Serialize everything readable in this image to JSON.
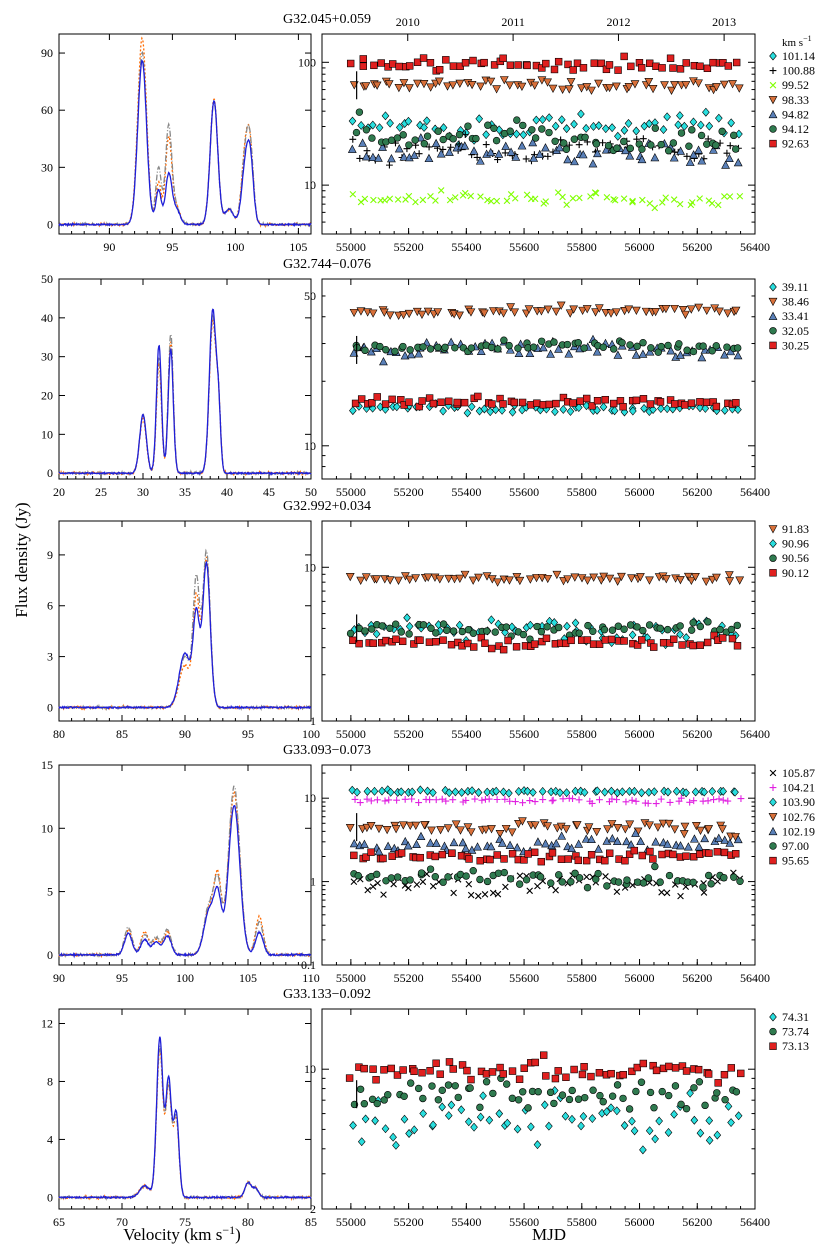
{
  "figure": {
    "ylabel": "Flux density (Jy)",
    "xlabel_left": "Velocity (km s",
    "xlabel_left_sup": "−1",
    "xlabel_left_end": ")",
    "xlabel_right": "MJD",
    "legend_unit": "km s",
    "legend_unit_sup": "−1",
    "top_years": [
      {
        "label": "2010",
        "mjd": 55197
      },
      {
        "label": "2011",
        "mjd": 55562
      },
      {
        "label": "2012",
        "mjd": 55927
      },
      {
        "label": "2013",
        "mjd": 56293
      }
    ],
    "spectrum_line_colors": {
      "main": "#1f1fd8",
      "dashdot": "#888888",
      "dotted": "#ff6a00"
    }
  },
  "chart_data": [
    {
      "type": "line",
      "title": "G32.045+0.059",
      "spectrum": {
        "xlim": [
          86,
          106
        ],
        "ylim": [
          -5,
          100
        ],
        "xticks": [
          90,
          95,
          100,
          105
        ],
        "yticks": [
          0,
          30,
          60,
          90
        ],
        "peaks": [
          {
            "v": 92.6,
            "main": 86,
            "dash": 90,
            "dot": 98,
            "w": 0.35
          },
          {
            "v": 93.9,
            "main": 18,
            "dash": 30,
            "dot": 22,
            "w": 0.22
          },
          {
            "v": 94.7,
            "main": 26,
            "dash": 51,
            "dot": 45,
            "w": 0.25
          },
          {
            "v": 95.3,
            "main": 8,
            "dash": 9,
            "dot": 9,
            "w": 0.3
          },
          {
            "v": 98.3,
            "main": 65,
            "dash": 64,
            "dot": 66,
            "w": 0.3
          },
          {
            "v": 99.5,
            "main": 8,
            "dash": 8,
            "dot": 8,
            "w": 0.35
          },
          {
            "v": 100.8,
            "main": 30,
            "dash": 36,
            "dot": 38,
            "w": 0.3
          },
          {
            "v": 101.2,
            "main": 28,
            "dash": 32,
            "dot": 30,
            "w": 0.25
          }
        ]
      },
      "lightcurve": {
        "xlim": [
          54900,
          56400
        ],
        "ylog": true,
        "ylim": [
          4,
          170
        ],
        "xticks": [
          55000,
          55200,
          55400,
          55600,
          55800,
          56000,
          56200,
          56400
        ],
        "yticks": [
          10,
          100
        ],
        "legend_with_unit": true,
        "series": [
          {
            "name": "101.14",
            "marker": "diamond",
            "color": "#29dede",
            "base": 30,
            "var": 0.25
          },
          {
            "name": "100.88",
            "marker": "plus",
            "color": "#000000",
            "base": 20,
            "var": 0.3
          },
          {
            "name": "99.52",
            "marker": "x",
            "color": "#80ff00",
            "base": 7.5,
            "var": 0.15
          },
          {
            "name": "98.33",
            "marker": "tri-down",
            "color": "#d8703a",
            "base": 65,
            "var": 0.12
          },
          {
            "name": "94.82",
            "marker": "tri-up",
            "color": "#5a80b8",
            "base": 18,
            "var": 0.3
          },
          {
            "name": "94.12",
            "marker": "circle",
            "color": "#2f7a4f",
            "base": 25,
            "var": 0.35
          },
          {
            "name": "92.63",
            "marker": "square",
            "color": "#e0201f",
            "base": 95,
            "var": 0.15
          }
        ]
      }
    },
    {
      "type": "line",
      "title": "G32.744−0.076",
      "spectrum": {
        "xlim": [
          20,
          50
        ],
        "ylim": [
          -1.5,
          50
        ],
        "xticks": [
          20,
          25,
          30,
          35,
          40,
          45,
          50
        ],
        "yticks": [
          0,
          10,
          20,
          30,
          40,
          50
        ],
        "peaks": [
          {
            "v": 30.0,
            "main": 15,
            "dash": 15,
            "dot": 14,
            "w": 0.4
          },
          {
            "v": 31.9,
            "main": 33,
            "dash": 30,
            "dot": 28,
            "w": 0.3
          },
          {
            "v": 33.3,
            "main": 32,
            "dash": 36,
            "dot": 34,
            "w": 0.3
          },
          {
            "v": 38.3,
            "main": 42,
            "dash": 40,
            "dot": 39,
            "w": 0.4
          },
          {
            "v": 39.0,
            "main": 14,
            "dash": 15,
            "dot": 15,
            "w": 0.25
          }
        ]
      },
      "lightcurve": {
        "xlim": [
          54900,
          56400
        ],
        "ylog": true,
        "ylim": [
          7,
          60
        ],
        "xticks": [
          55000,
          55200,
          55400,
          55600,
          55800,
          56000,
          56200,
          56400
        ],
        "yticks": [
          10,
          50
        ],
        "legend_with_unit": false,
        "series": [
          {
            "name": "39.11",
            "marker": "diamond",
            "color": "#29dede",
            "base": 15,
            "var": 0.05
          },
          {
            "name": "38.46",
            "marker": "tri-down",
            "color": "#d8703a",
            "base": 42,
            "var": 0.06
          },
          {
            "name": "33.41",
            "marker": "tri-up",
            "color": "#5a80b8",
            "base": 28,
            "var": 0.1
          },
          {
            "name": "32.05",
            "marker": "circle",
            "color": "#2f7a4f",
            "base": 29,
            "var": 0.06
          },
          {
            "name": "30.25",
            "marker": "square",
            "color": "#e0201f",
            "base": 16,
            "var": 0.06
          }
        ]
      }
    },
    {
      "type": "line",
      "title": "G32.992+0.034",
      "spectrum": {
        "xlim": [
          80,
          100
        ],
        "ylim": [
          -0.8,
          11
        ],
        "xticks": [
          80,
          85,
          90,
          95,
          100
        ],
        "yticks": [
          0,
          3,
          6,
          9
        ],
        "peaks": [
          {
            "v": 90.0,
            "main": 3.2,
            "dash": 3.0,
            "dot": 2.5,
            "w": 0.45
          },
          {
            "v": 90.9,
            "main": 5.2,
            "dash": 7.2,
            "dot": 6.2,
            "w": 0.25
          },
          {
            "v": 91.7,
            "main": 8.5,
            "dash": 9.2,
            "dot": 8.8,
            "w": 0.3
          }
        ]
      },
      "lightcurve": {
        "xlim": [
          54900,
          56400
        ],
        "ylog": true,
        "ylim": [
          1,
          20
        ],
        "xticks": [
          55000,
          55200,
          55400,
          55600,
          55800,
          56000,
          56200,
          56400
        ],
        "yticks": [
          1,
          10
        ],
        "legend_with_unit": false,
        "series": [
          {
            "name": "91.83",
            "marker": "tri-down",
            "color": "#d8703a",
            "base": 8.5,
            "var": 0.08
          },
          {
            "name": "90.96",
            "marker": "diamond",
            "color": "#29dede",
            "base": 4.0,
            "var": 0.2
          },
          {
            "name": "90.56",
            "marker": "circle",
            "color": "#2f7a4f",
            "base": 4.0,
            "var": 0.12
          },
          {
            "name": "90.12",
            "marker": "square",
            "color": "#e0201f",
            "base": 3.2,
            "var": 0.12
          }
        ]
      }
    },
    {
      "type": "line",
      "title": "G33.093−0.073",
      "spectrum": {
        "xlim": [
          90,
          110
        ],
        "ylim": [
          -0.8,
          15
        ],
        "xticks": [
          90,
          95,
          100,
          105,
          110
        ],
        "yticks": [
          0,
          5,
          10,
          15
        ],
        "peaks": [
          {
            "v": 95.5,
            "main": 1.7,
            "dash": 2.2,
            "dot": 2.0,
            "w": 0.3
          },
          {
            "v": 96.8,
            "main": 1.2,
            "dash": 1.6,
            "dot": 1.8,
            "w": 0.3
          },
          {
            "v": 97.7,
            "main": 1.0,
            "dash": 1.4,
            "dot": 1.2,
            "w": 0.3
          },
          {
            "v": 98.6,
            "main": 1.5,
            "dash": 2.0,
            "dot": 1.8,
            "w": 0.3
          },
          {
            "v": 101.9,
            "main": 3.4,
            "dash": 3.8,
            "dot": 3.5,
            "w": 0.4
          },
          {
            "v": 102.6,
            "main": 4.4,
            "dash": 5.3,
            "dot": 5.7,
            "w": 0.3
          },
          {
            "v": 103.9,
            "main": 11.8,
            "dash": 13.3,
            "dot": 12.8,
            "w": 0.45
          },
          {
            "v": 105.9,
            "main": 1.8,
            "dash": 2.6,
            "dot": 3.0,
            "w": 0.3
          }
        ]
      },
      "lightcurve": {
        "xlim": [
          54900,
          56400
        ],
        "ylog": true,
        "ylim": [
          0.1,
          25
        ],
        "xticks": [
          55000,
          55200,
          55400,
          55600,
          55800,
          56000,
          56200,
          56400
        ],
        "yticks": [
          0.1,
          1,
          10
        ],
        "legend_with_unit": false,
        "series": [
          {
            "name": "105.87",
            "marker": "x",
            "color": "#000000",
            "base": 1.0,
            "var": 0.4
          },
          {
            "name": "104.21",
            "marker": "plus",
            "color": "#e020e0",
            "base": 9.5,
            "var": 0.1
          },
          {
            "name": "103.90",
            "marker": "diamond",
            "color": "#29dede",
            "base": 12,
            "var": 0.05
          },
          {
            "name": "102.76",
            "marker": "tri-down",
            "color": "#d8703a",
            "base": 4.5,
            "var": 0.2
          },
          {
            "name": "102.19",
            "marker": "tri-up",
            "color": "#5a80b8",
            "base": 3.0,
            "var": 0.25
          },
          {
            "name": "97.00",
            "marker": "circle",
            "color": "#2f7a4f",
            "base": 1.1,
            "var": 0.3
          },
          {
            "name": "95.65",
            "marker": "square",
            "color": "#e0201f",
            "base": 2.0,
            "var": 0.15
          }
        ]
      }
    },
    {
      "type": "line",
      "title": "G33.133−0.092",
      "spectrum": {
        "xlim": [
          65,
          85
        ],
        "ylim": [
          -0.8,
          13
        ],
        "xticks": [
          65,
          70,
          75,
          80,
          85
        ],
        "yticks": [
          0,
          4,
          8,
          12
        ],
        "peaks": [
          {
            "v": 71.8,
            "main": 0.8,
            "dash": 0.8,
            "dot": 0.8,
            "w": 0.4
          },
          {
            "v": 73.0,
            "main": 11.0,
            "dash": 10.4,
            "dot": 10.2,
            "w": 0.25
          },
          {
            "v": 73.7,
            "main": 8.0,
            "dash": 7.6,
            "dot": 7.5,
            "w": 0.22
          },
          {
            "v": 74.3,
            "main": 5.8,
            "dash": 5.5,
            "dot": 5.4,
            "w": 0.22
          },
          {
            "v": 80.0,
            "main": 1.0,
            "dash": 1.0,
            "dot": 1.0,
            "w": 0.25
          },
          {
            "v": 80.6,
            "main": 0.6,
            "dash": 0.6,
            "dot": 0.6,
            "w": 0.25
          }
        ]
      },
      "lightcurve": {
        "xlim": [
          54900,
          56400
        ],
        "ylog": true,
        "ylim": [
          2,
          20
        ],
        "xticks": [
          55000,
          55200,
          55400,
          55600,
          55800,
          56000,
          56200,
          56400
        ],
        "yticks": [
          2,
          10
        ],
        "legend_with_unit": false,
        "series": [
          {
            "name": "74.31",
            "marker": "diamond",
            "color": "#29dede",
            "base": 5.5,
            "var": 0.35
          },
          {
            "name": "73.74",
            "marker": "circle",
            "color": "#2f7a4f",
            "base": 7.5,
            "var": 0.2
          },
          {
            "name": "73.13",
            "marker": "square",
            "color": "#e0201f",
            "base": 10,
            "var": 0.2
          }
        ]
      }
    }
  ]
}
